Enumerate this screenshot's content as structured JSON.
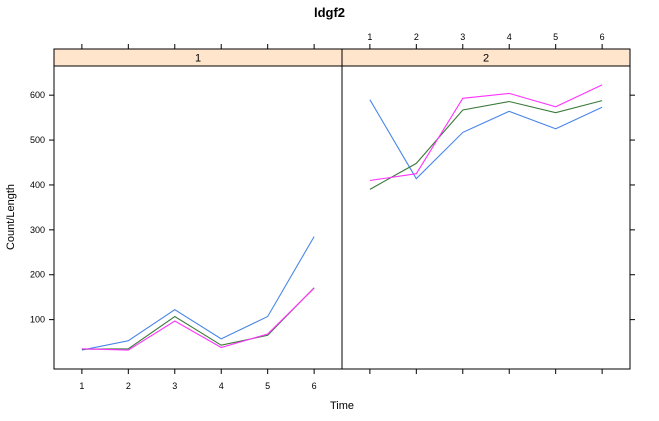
{
  "chart_data": {
    "type": "line",
    "title": "ldgf2",
    "xlabel": "Time",
    "ylabel": "Count/Length",
    "xlim": [
      0.4,
      6.6
    ],
    "ylim": [
      -10,
      665
    ],
    "x_ticks": [
      1,
      2,
      3,
      4,
      5,
      6
    ],
    "y_ticks": [
      100,
      200,
      300,
      400,
      500,
      600
    ],
    "grid": false,
    "colors": [
      "#4a86e8",
      "#3a7a3a",
      "#ff33ff"
    ],
    "panels": [
      {
        "label": "1",
        "x": [
          1,
          2,
          3,
          4,
          5,
          6
        ],
        "series": [
          {
            "values": [
              32,
              53,
              122,
              57,
              107,
              285
            ],
            "color": "#4a86e8"
          },
          {
            "values": [
              34,
              35,
              107,
              43,
              65,
              171
            ],
            "color": "#3a7a3a"
          },
          {
            "values": [
              35,
              32,
              97,
              38,
              68,
              170
            ],
            "color": "#ff33ff"
          }
        ]
      },
      {
        "label": "2",
        "x": [
          1,
          2,
          3,
          4,
          5,
          6
        ],
        "series": [
          {
            "values": [
              590,
              414,
              517,
              564,
              525,
              573
            ],
            "color": "#4a86e8"
          },
          {
            "values": [
              390,
              448,
              567,
              586,
              561,
              588
            ],
            "color": "#3a7a3a"
          },
          {
            "values": [
              410,
              425,
              593,
              604,
              574,
              623
            ],
            "color": "#ff33ff"
          }
        ]
      }
    ]
  }
}
